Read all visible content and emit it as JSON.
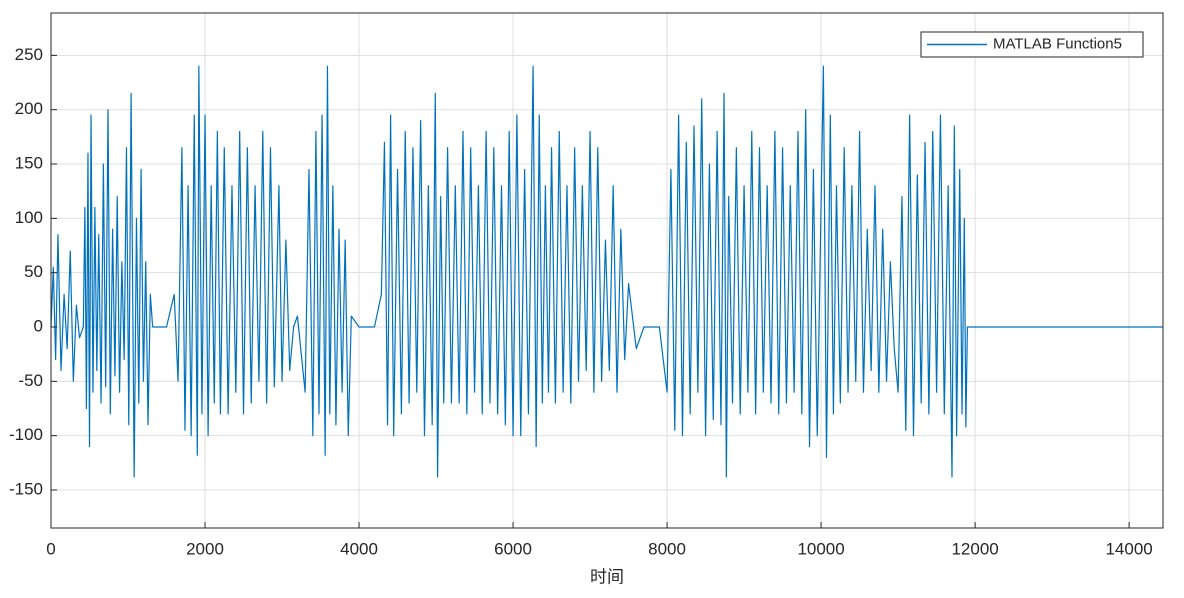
{
  "chart_data": {
    "type": "line",
    "xlabel": "时间",
    "xlim": [
      0,
      14440
    ],
    "ylim": [
      -185,
      289
    ],
    "xticks": [
      0,
      2000,
      4000,
      6000,
      8000,
      10000,
      12000,
      14000
    ],
    "yticks": [
      -150,
      -100,
      -50,
      0,
      50,
      100,
      150,
      200,
      250
    ],
    "grid": true,
    "legend": "northeast",
    "x": [
      0,
      30,
      60,
      90,
      130,
      170,
      210,
      250,
      290,
      330,
      370,
      420,
      440,
      460,
      480,
      500,
      520,
      545,
      570,
      595,
      620,
      650,
      680,
      710,
      740,
      770,
      800,
      830,
      860,
      890,
      920,
      950,
      980,
      1010,
      1040,
      1080,
      1110,
      1140,
      1170,
      1200,
      1230,
      1260,
      1290,
      1320,
      1500,
      1600,
      1650,
      1700,
      1740,
      1780,
      1820,
      1860,
      1900,
      1920,
      1960,
      2000,
      2040,
      2080,
      2120,
      2160,
      2200,
      2250,
      2300,
      2350,
      2400,
      2450,
      2500,
      2550,
      2600,
      2650,
      2700,
      2750,
      2800,
      2850,
      2900,
      2960,
      3000,
      3050,
      3100,
      3150,
      3200,
      3300,
      3350,
      3400,
      3440,
      3480,
      3520,
      3560,
      3590,
      3620,
      3660,
      3700,
      3740,
      3780,
      3820,
      3860,
      3900,
      4000,
      4200,
      4290,
      4330,
      4370,
      4410,
      4450,
      4500,
      4550,
      4600,
      4650,
      4700,
      4750,
      4800,
      4850,
      4900,
      4950,
      4990,
      5020,
      5060,
      5100,
      5150,
      5200,
      5250,
      5300,
      5350,
      5400,
      5450,
      5500,
      5550,
      5600,
      5650,
      5700,
      5750,
      5800,
      5850,
      5900,
      5950,
      6000,
      6050,
      6100,
      6150,
      6200,
      6260,
      6300,
      6340,
      6380,
      6420,
      6460,
      6500,
      6550,
      6600,
      6650,
      6700,
      6750,
      6800,
      6850,
      6900,
      6950,
      7000,
      7050,
      7100,
      7150,
      7200,
      7250,
      7300,
      7350,
      7400,
      7450,
      7500,
      7600,
      7700,
      7900,
      8000,
      8050,
      8100,
      8150,
      8200,
      8250,
      8300,
      8350,
      8400,
      8450,
      8500,
      8550,
      8600,
      8650,
      8700,
      8740,
      8770,
      8800,
      8850,
      8900,
      8950,
      9000,
      9050,
      9100,
      9150,
      9200,
      9250,
      9300,
      9350,
      9400,
      9450,
      9500,
      9550,
      9600,
      9650,
      9700,
      9750,
      9800,
      9850,
      9900,
      9950,
      10030,
      10070,
      10120,
      10160,
      10200,
      10250,
      10300,
      10350,
      10400,
      10450,
      10500,
      10550,
      10600,
      10650,
      10700,
      10750,
      10800,
      10850,
      10900,
      10950,
      11000,
      11050,
      11100,
      11150,
      11200,
      11250,
      11300,
      11350,
      11400,
      11450,
      11500,
      11550,
      11600,
      11650,
      11700,
      11730,
      11760,
      11800,
      11830,
      11860,
      11880,
      11900,
      14440
    ],
    "series": [
      {
        "name": "MATLAB Function5",
        "color": "#0072bd",
        "values": [
          0,
          55,
          -30,
          85,
          -40,
          30,
          -20,
          70,
          -50,
          20,
          -10,
          0,
          110,
          -75,
          160,
          -110,
          195,
          -60,
          110,
          -40,
          85,
          -70,
          150,
          -55,
          200,
          -80,
          90,
          -45,
          120,
          -60,
          60,
          -30,
          165,
          -90,
          215,
          -138,
          100,
          -70,
          145,
          -50,
          60,
          -90,
          30,
          0,
          0,
          30,
          -50,
          165,
          -95,
          130,
          -100,
          195,
          -118,
          240,
          -80,
          195,
          -100,
          130,
          -70,
          180,
          -80,
          165,
          -80,
          130,
          -60,
          180,
          -80,
          165,
          -70,
          130,
          -50,
          180,
          -70,
          165,
          -55,
          130,
          -50,
          80,
          -40,
          0,
          10,
          -60,
          145,
          -100,
          180,
          -80,
          195,
          -118,
          240,
          -80,
          130,
          -90,
          90,
          -60,
          80,
          -100,
          10,
          0,
          0,
          30,
          170,
          -90,
          195,
          -100,
          145,
          -80,
          180,
          -70,
          165,
          -60,
          190,
          -100,
          130,
          -90,
          215,
          -138,
          120,
          -70,
          165,
          -70,
          130,
          -70,
          180,
          -80,
          165,
          -60,
          130,
          -80,
          180,
          -70,
          165,
          -80,
          130,
          -90,
          180,
          -100,
          195,
          -100,
          145,
          -80,
          240,
          -110,
          195,
          -70,
          130,
          -60,
          165,
          -70,
          180,
          -60,
          130,
          -70,
          165,
          -50,
          130,
          -40,
          180,
          -60,
          165,
          -50,
          80,
          -40,
          130,
          -60,
          90,
          -30,
          40,
          -20,
          0,
          0,
          -60,
          145,
          -95,
          195,
          -100,
          170,
          -80,
          185,
          -60,
          210,
          -100,
          150,
          -85,
          180,
          -90,
          215,
          -138,
          120,
          -70,
          165,
          -80,
          130,
          -60,
          180,
          -80,
          165,
          -60,
          130,
          -70,
          180,
          -80,
          165,
          -70,
          130,
          -60,
          180,
          -80,
          200,
          -110,
          145,
          -100,
          240,
          -120,
          195,
          -80,
          130,
          -70,
          165,
          -60,
          130,
          -50,
          180,
          -60,
          90,
          -40,
          130,
          -60,
          90,
          -50,
          60,
          -20,
          -60,
          120,
          -95,
          195,
          -100,
          140,
          -70,
          170,
          -80,
          180,
          -60,
          195,
          -80,
          130,
          -138,
          185,
          -100,
          145,
          -80,
          100,
          -92,
          0,
          0
        ]
      }
    ]
  }
}
